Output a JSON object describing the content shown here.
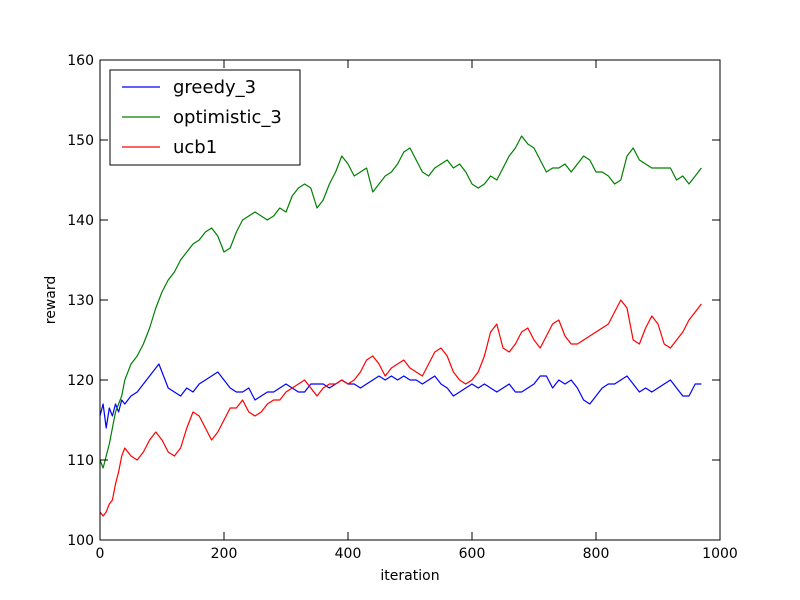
{
  "chart_data": {
    "type": "line",
    "title": "",
    "xlabel": "iteration",
    "ylabel": "reward",
    "xlim": [
      0,
      1000
    ],
    "ylim": [
      100,
      160
    ],
    "xticks": [
      0,
      200,
      400,
      600,
      800,
      1000
    ],
    "yticks": [
      100,
      110,
      120,
      130,
      140,
      150,
      160
    ],
    "xtick_labels": [
      "0",
      "200",
      "400",
      "600",
      "800",
      "1000"
    ],
    "ytick_labels": [
      "100",
      "110",
      "120",
      "130",
      "140",
      "150",
      "160"
    ],
    "grid": false,
    "legend_position": "top-left",
    "series": [
      {
        "name": "greedy_3",
        "color": "#0000ff",
        "x": [
          0,
          5,
          10,
          15,
          20,
          25,
          30,
          35,
          40,
          50,
          60,
          70,
          80,
          90,
          95,
          100,
          110,
          120,
          130,
          140,
          150,
          160,
          170,
          180,
          190,
          200,
          210,
          220,
          230,
          240,
          250,
          260,
          270,
          280,
          290,
          300,
          310,
          320,
          330,
          340,
          350,
          360,
          370,
          380,
          390,
          400,
          410,
          420,
          430,
          440,
          450,
          460,
          470,
          480,
          490,
          500,
          510,
          520,
          530,
          540,
          550,
          560,
          570,
          580,
          590,
          600,
          610,
          620,
          630,
          640,
          650,
          660,
          670,
          680,
          690,
          700,
          710,
          720,
          730,
          740,
          750,
          760,
          770,
          780,
          790,
          800,
          810,
          820,
          830,
          840,
          850,
          860,
          870,
          880,
          890,
          900,
          910,
          920,
          930,
          940,
          950,
          960,
          970
        ],
        "values": [
          115.5,
          117.0,
          114.0,
          116.5,
          115.5,
          117.0,
          116.0,
          117.5,
          117.0,
          118.0,
          118.5,
          119.5,
          120.5,
          121.5,
          122.0,
          121.0,
          119.0,
          118.5,
          118.0,
          119.0,
          118.5,
          119.5,
          120.0,
          120.5,
          121.0,
          120.0,
          119.0,
          118.5,
          118.5,
          119.0,
          117.5,
          118.0,
          118.5,
          118.5,
          119.0,
          119.5,
          119.0,
          118.5,
          118.5,
          119.5,
          119.5,
          119.5,
          119.0,
          119.5,
          120.0,
          119.5,
          119.5,
          119.0,
          119.5,
          120.0,
          120.5,
          120.0,
          120.5,
          120.0,
          120.5,
          120.0,
          120.0,
          119.5,
          120.0,
          120.5,
          119.5,
          119.0,
          118.0,
          118.5,
          119.0,
          119.5,
          119.0,
          119.5,
          119.0,
          118.5,
          119.0,
          119.5,
          118.5,
          118.5,
          119.0,
          119.5,
          120.5,
          120.5,
          119.0,
          120.0,
          119.5,
          120.0,
          119.0,
          117.5,
          117.0,
          118.0,
          119.0,
          119.5,
          119.5,
          120.0,
          120.5,
          119.5,
          118.5,
          119.0,
          118.5,
          119.0,
          119.5,
          120.0,
          119.0,
          118.0,
          118.0,
          119.5,
          119.5
        ]
      },
      {
        "name": "optimistic_3",
        "color": "#008000",
        "x": [
          0,
          5,
          10,
          15,
          20,
          25,
          30,
          35,
          40,
          50,
          60,
          70,
          80,
          90,
          100,
          110,
          120,
          130,
          140,
          150,
          160,
          170,
          180,
          190,
          200,
          210,
          220,
          230,
          240,
          250,
          260,
          270,
          280,
          290,
          300,
          310,
          320,
          330,
          340,
          350,
          360,
          370,
          380,
          390,
          400,
          410,
          420,
          430,
          440,
          450,
          460,
          470,
          480,
          490,
          500,
          510,
          520,
          530,
          540,
          550,
          560,
          570,
          580,
          590,
          600,
          610,
          620,
          630,
          640,
          650,
          660,
          670,
          680,
          690,
          700,
          710,
          720,
          730,
          740,
          750,
          760,
          770,
          780,
          790,
          800,
          810,
          820,
          830,
          840,
          850,
          860,
          870,
          880,
          890,
          900,
          910,
          920,
          930,
          940,
          950,
          960,
          970
        ],
        "values": [
          110.0,
          109.0,
          110.5,
          112.0,
          114.0,
          116.0,
          117.0,
          118.0,
          120.0,
          122.0,
          123.0,
          124.5,
          126.5,
          129.0,
          131.0,
          132.5,
          133.5,
          135.0,
          136.0,
          137.0,
          137.5,
          138.5,
          139.0,
          138.0,
          136.0,
          136.5,
          138.5,
          140.0,
          140.5,
          141.0,
          140.5,
          140.0,
          140.5,
          141.5,
          141.0,
          143.0,
          144.0,
          144.5,
          144.0,
          141.5,
          142.5,
          144.5,
          146.0,
          148.0,
          147.0,
          145.5,
          146.0,
          146.5,
          143.5,
          144.5,
          145.5,
          146.0,
          147.0,
          148.5,
          149.0,
          147.5,
          146.0,
          145.5,
          146.5,
          147.0,
          147.5,
          146.5,
          147.0,
          146.0,
          144.5,
          144.0,
          144.5,
          145.5,
          145.0,
          146.5,
          148.0,
          149.0,
          150.5,
          149.5,
          149.0,
          147.5,
          146.0,
          146.5,
          146.5,
          147.0,
          146.0,
          147.0,
          148.0,
          147.5,
          146.0,
          146.0,
          145.5,
          144.5,
          145.0,
          148.0,
          149.0,
          147.5,
          147.0,
          146.5,
          146.5,
          146.5,
          146.5,
          145.0,
          145.5,
          144.5,
          145.5,
          146.5
        ]
      },
      {
        "name": "ucb1",
        "color": "#ff0000",
        "x": [
          0,
          5,
          10,
          15,
          20,
          25,
          30,
          35,
          40,
          50,
          60,
          70,
          80,
          90,
          100,
          110,
          120,
          130,
          140,
          150,
          160,
          170,
          180,
          190,
          200,
          210,
          220,
          230,
          240,
          250,
          260,
          270,
          280,
          290,
          300,
          310,
          320,
          330,
          340,
          350,
          360,
          370,
          380,
          390,
          400,
          410,
          420,
          430,
          440,
          450,
          460,
          470,
          480,
          490,
          500,
          510,
          520,
          530,
          540,
          550,
          560,
          570,
          580,
          590,
          600,
          610,
          620,
          630,
          640,
          650,
          660,
          670,
          680,
          690,
          700,
          710,
          720,
          730,
          740,
          750,
          760,
          770,
          780,
          790,
          800,
          810,
          820,
          830,
          840,
          850,
          860,
          870,
          880,
          890,
          900,
          910,
          920,
          930,
          940,
          950,
          960,
          970
        ],
        "values": [
          103.5,
          103.0,
          103.5,
          104.5,
          105.0,
          107.0,
          108.5,
          110.5,
          111.5,
          110.5,
          110.0,
          111.0,
          112.5,
          113.5,
          112.5,
          111.0,
          110.5,
          111.5,
          114.0,
          116.0,
          115.5,
          114.0,
          112.5,
          113.5,
          115.0,
          116.5,
          116.5,
          117.5,
          116.0,
          115.5,
          116.0,
          117.0,
          117.5,
          117.5,
          118.5,
          119.0,
          119.5,
          120.0,
          119.0,
          118.0,
          119.0,
          119.5,
          119.5,
          120.0,
          119.5,
          120.0,
          121.0,
          122.5,
          123.0,
          122.0,
          120.5,
          121.5,
          122.0,
          122.5,
          121.5,
          121.0,
          120.5,
          122.0,
          123.5,
          124.0,
          123.0,
          121.0,
          120.0,
          119.5,
          120.0,
          121.0,
          123.0,
          126.0,
          127.0,
          124.0,
          123.5,
          124.5,
          126.0,
          126.5,
          125.0,
          124.0,
          125.5,
          127.0,
          127.5,
          125.5,
          124.5,
          124.5,
          125.0,
          125.5,
          126.0,
          126.5,
          127.0,
          128.5,
          130.0,
          129.0,
          125.0,
          124.5,
          126.5,
          128.0,
          127.0,
          124.5,
          124.0,
          125.0,
          126.0,
          127.5,
          128.5,
          129.5
        ]
      }
    ]
  }
}
